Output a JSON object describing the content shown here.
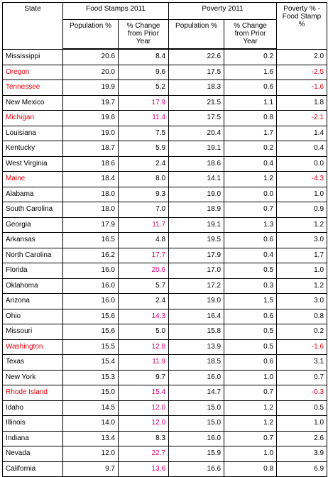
{
  "headers": {
    "state": "State",
    "food_stamps": "Food Stamps 2011",
    "poverty": "Poverty 2011",
    "diff": "Poverty % - Food Stamp %",
    "population": "Population %",
    "change": "% Change from Prior Year"
  },
  "colors": {
    "highlight_state": "#e8000b",
    "highlight_change": "#e0007a"
  },
  "rows": [
    {
      "state": "Mississippi",
      "fs_pop": "20.6",
      "fs_chg": "8.4",
      "pov_pop": "22.6",
      "pov_chg": "0.2",
      "diff": "2.0",
      "state_red": false,
      "chg_red": false,
      "diff_red": false
    },
    {
      "state": "Oregon",
      "fs_pop": "20.0",
      "fs_chg": "9.6",
      "pov_pop": "17.5",
      "pov_chg": "1.6",
      "diff": "-2.5",
      "state_red": true,
      "chg_red": false,
      "diff_red": true
    },
    {
      "state": "Tennessee",
      "fs_pop": "19.9",
      "fs_chg": "5.2",
      "pov_pop": "18.3",
      "pov_chg": "0.6",
      "diff": "-1.6",
      "state_red": true,
      "chg_red": false,
      "diff_red": true
    },
    {
      "state": "New Mexico",
      "fs_pop": "19.7",
      "fs_chg": "17.9",
      "pov_pop": "21.5",
      "pov_chg": "1.1",
      "diff": "1.8",
      "state_red": false,
      "chg_red": true,
      "diff_red": false
    },
    {
      "state": "Michigan",
      "fs_pop": "19.6",
      "fs_chg": "11.4",
      "pov_pop": "17.5",
      "pov_chg": "0.8",
      "diff": "-2.1",
      "state_red": true,
      "chg_red": true,
      "diff_red": true
    },
    {
      "state": "Louisiana",
      "fs_pop": "19.0",
      "fs_chg": "7.5",
      "pov_pop": "20.4",
      "pov_chg": "1.7",
      "diff": "1.4",
      "state_red": false,
      "chg_red": false,
      "diff_red": false
    },
    {
      "state": "Kentucky",
      "fs_pop": "18.7",
      "fs_chg": "5.9",
      "pov_pop": "19.1",
      "pov_chg": "0.2",
      "diff": "0.4",
      "state_red": false,
      "chg_red": false,
      "diff_red": false
    },
    {
      "state": "West Virginia",
      "fs_pop": "18.6",
      "fs_chg": "2.4",
      "pov_pop": "18.6",
      "pov_chg": "0.4",
      "diff": "0.0",
      "state_red": false,
      "chg_red": false,
      "diff_red": false
    },
    {
      "state": "Maine",
      "fs_pop": "18.4",
      "fs_chg": "8.0",
      "pov_pop": "14.1",
      "pov_chg": "1.2",
      "diff": "-4.3",
      "state_red": true,
      "chg_red": false,
      "diff_red": true
    },
    {
      "state": "Alabama",
      "fs_pop": "18.0",
      "fs_chg": "9.3",
      "pov_pop": "19.0",
      "pov_chg": "0.0",
      "diff": "1.0",
      "state_red": false,
      "chg_red": false,
      "diff_red": false
    },
    {
      "state": "South Carolina",
      "fs_pop": "18.0",
      "fs_chg": "7.0",
      "pov_pop": "18.9",
      "pov_chg": "0.7",
      "diff": "0.9",
      "state_red": false,
      "chg_red": false,
      "diff_red": false
    },
    {
      "state": "Georgia",
      "fs_pop": "17.9",
      "fs_chg": "11.7",
      "pov_pop": "19.1",
      "pov_chg": "1.3",
      "diff": "1.2",
      "state_red": false,
      "chg_red": true,
      "diff_red": false
    },
    {
      "state": "Arkansas",
      "fs_pop": "16.5",
      "fs_chg": "4.8",
      "pov_pop": "19.5",
      "pov_chg": "0.6",
      "diff": "3.0",
      "state_red": false,
      "chg_red": false,
      "diff_red": false
    },
    {
      "state": "North Carolina",
      "fs_pop": "16.2",
      "fs_chg": "17.7",
      "pov_pop": "17.9",
      "pov_chg": "0.4",
      "diff": "1.7",
      "state_red": false,
      "chg_red": true,
      "diff_red": false
    },
    {
      "state": "Florida",
      "fs_pop": "16.0",
      "fs_chg": "20.6",
      "pov_pop": "17.0",
      "pov_chg": "0.5",
      "diff": "1.0",
      "state_red": false,
      "chg_red": true,
      "diff_red": false
    },
    {
      "state": "Oklahoma",
      "fs_pop": "16.0",
      "fs_chg": "5.7",
      "pov_pop": "17.2",
      "pov_chg": "0.3",
      "diff": "1.2",
      "state_red": false,
      "chg_red": false,
      "diff_red": false
    },
    {
      "state": "Arizona",
      "fs_pop": "16.0",
      "fs_chg": "2.4",
      "pov_pop": "19.0",
      "pov_chg": "1.5",
      "diff": "3.0",
      "state_red": false,
      "chg_red": false,
      "diff_red": false
    },
    {
      "state": "Ohio",
      "fs_pop": "15.6",
      "fs_chg": "14.3",
      "pov_pop": "16.4",
      "pov_chg": "0.6",
      "diff": "0.8",
      "state_red": false,
      "chg_red": true,
      "diff_red": false
    },
    {
      "state": "Missouri",
      "fs_pop": "15.6",
      "fs_chg": "5.0",
      "pov_pop": "15.8",
      "pov_chg": "0.5",
      "diff": "0.2",
      "state_red": false,
      "chg_red": false,
      "diff_red": false
    },
    {
      "state": "Washington",
      "fs_pop": "15.5",
      "fs_chg": "12.8",
      "pov_pop": "13.9",
      "pov_chg": "0.5",
      "diff": "-1.6",
      "state_red": true,
      "chg_red": true,
      "diff_red": true
    },
    {
      "state": "Texas",
      "fs_pop": "15.4",
      "fs_chg": "11.9",
      "pov_pop": "18.5",
      "pov_chg": "0.6",
      "diff": "3.1",
      "state_red": false,
      "chg_red": true,
      "diff_red": false
    },
    {
      "state": "New York",
      "fs_pop": "15.3",
      "fs_chg": "9.7",
      "pov_pop": "16.0",
      "pov_chg": "1.0",
      "diff": "0.7",
      "state_red": false,
      "chg_red": false,
      "diff_red": false
    },
    {
      "state": "Rhode Island",
      "fs_pop": "15.0",
      "fs_chg": "15.4",
      "pov_pop": "14.7",
      "pov_chg": "0.7",
      "diff": "-0.3",
      "state_red": true,
      "chg_red": true,
      "diff_red": true
    },
    {
      "state": "Idaho",
      "fs_pop": "14.5",
      "fs_chg": "12.0",
      "pov_pop": "15.0",
      "pov_chg": "1.2",
      "diff": "0.5",
      "state_red": false,
      "chg_red": true,
      "diff_red": false
    },
    {
      "state": "Illinois",
      "fs_pop": "14.0",
      "fs_chg": "12.0",
      "pov_pop": "15.0",
      "pov_chg": "1.2",
      "diff": "1.0",
      "state_red": false,
      "chg_red": true,
      "diff_red": false
    },
    {
      "state": "Indiana",
      "fs_pop": "13.4",
      "fs_chg": "8.3",
      "pov_pop": "16.0",
      "pov_chg": "0.7",
      "diff": "2.6",
      "state_red": false,
      "chg_red": false,
      "diff_red": false
    },
    {
      "state": "Nevada",
      "fs_pop": "12.0",
      "fs_chg": "22.7",
      "pov_pop": "15.9",
      "pov_chg": "1.0",
      "diff": "3.9",
      "state_red": false,
      "chg_red": true,
      "diff_red": false
    },
    {
      "state": "California",
      "fs_pop": "9.7",
      "fs_chg": "13.6",
      "pov_pop": "16.6",
      "pov_chg": "0.8",
      "diff": "6.9",
      "state_red": false,
      "chg_red": true,
      "diff_red": false
    }
  ]
}
